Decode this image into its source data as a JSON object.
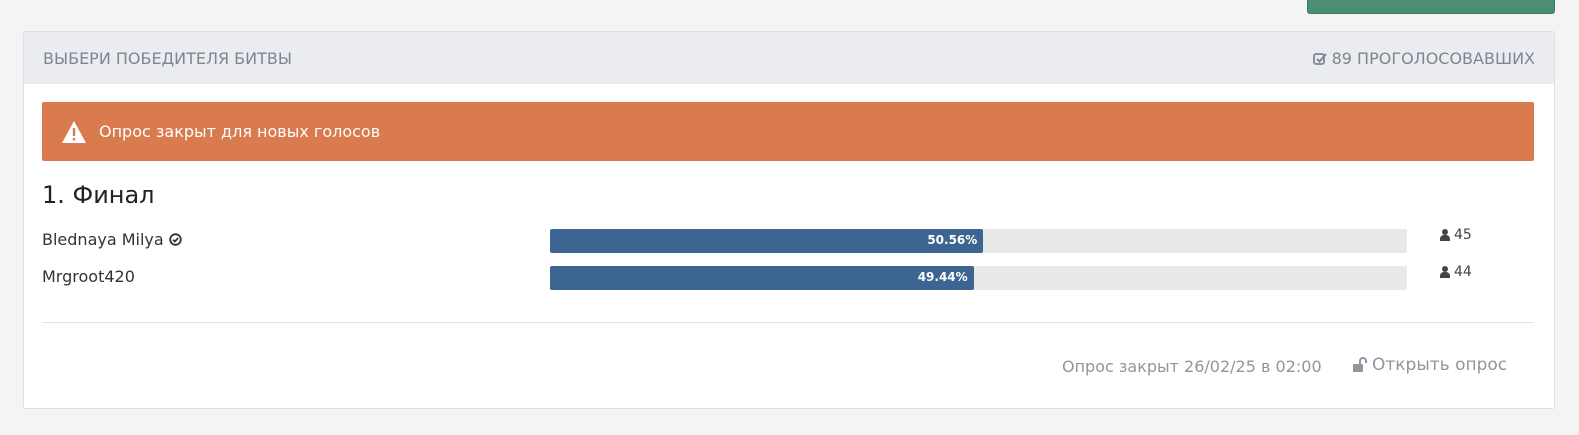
{
  "header": {
    "title": "ВЫБЕРИ ПОБЕДИТЕЛЯ БИТВЫ",
    "voters": "89 ПРОГОЛОСОВАВШИХ"
  },
  "alert": "Опрос закрыт для новых голосов",
  "question": "1. Финал",
  "options": [
    {
      "name": "Blednaya Milya",
      "percent": {
        "value": 50.56,
        "label": "50.56%"
      },
      "votes": 45
    },
    {
      "name": "Mrgroot420",
      "percent": {
        "value": 49.44,
        "label": "49.44%"
      },
      "votes": 44
    }
  ],
  "footer": {
    "closed": "Опрос закрыт 26/02/25 в 02:00",
    "reopen": "Открыть опрос"
  }
}
